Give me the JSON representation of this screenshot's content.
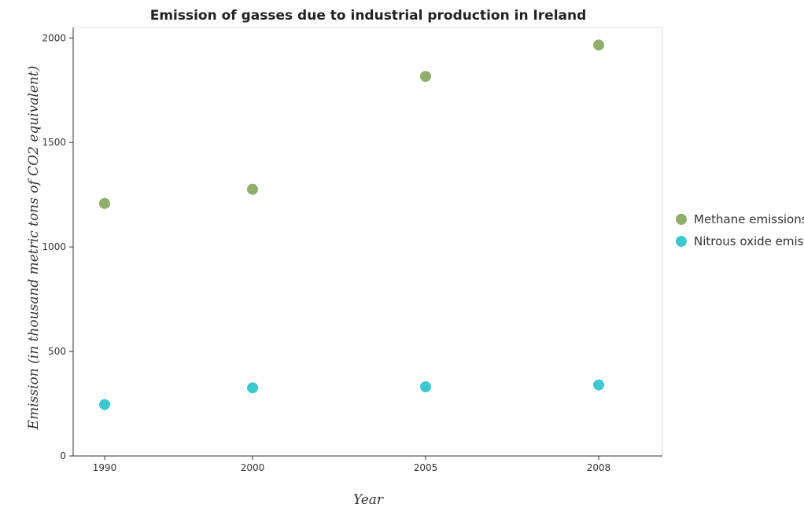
{
  "chart_data": {
    "type": "scatter",
    "title": "Emission of gasses due to industrial production in Ireland",
    "xlabel": "Year",
    "ylabel": "Emission (in thousand metric tons of CO2 equivalent)",
    "categories": [
      "1990",
      "2000",
      "2005",
      "2008"
    ],
    "ylim": [
      0,
      2050
    ],
    "yticks": [
      0,
      500,
      1000,
      1500,
      2000
    ],
    "ytick_labels": [
      "0",
      "500",
      "1000",
      "1500",
      "2000"
    ],
    "grid": false,
    "legend_position": "right",
    "series": [
      {
        "name": "Methane emissions",
        "color": "#8fae6b",
        "values": [
          1208,
          1276,
          1816,
          1966
        ]
      },
      {
        "name": "Nitrous oxide emissions",
        "color": "#3dc8d0",
        "values": [
          246,
          326,
          331,
          340
        ]
      }
    ]
  }
}
